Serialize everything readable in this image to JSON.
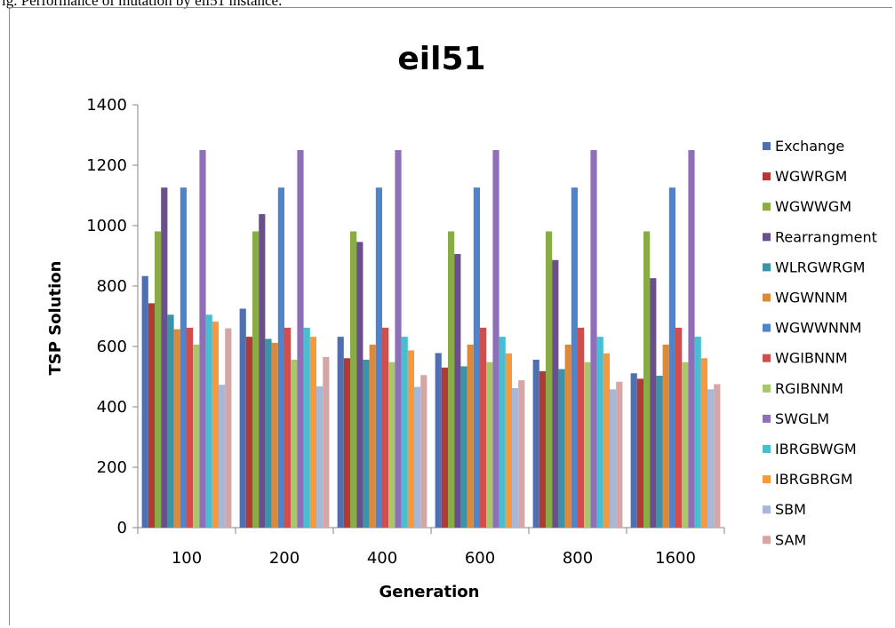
{
  "caption": "ig. Performance of mutation by eil51 instance.",
  "chart_data": {
    "type": "bar",
    "title": "eil51",
    "xlabel": "Generation",
    "ylabel": "TSP Solution",
    "ylim": [
      0,
      1400
    ],
    "yticks": [
      0,
      200,
      400,
      600,
      800,
      1000,
      1200,
      1400
    ],
    "grid": false,
    "legend_position": "right",
    "categories": [
      "100",
      "200",
      "400",
      "600",
      "800",
      "1600"
    ],
    "series": [
      {
        "name": "Exchange",
        "color": "#4f6fb0",
        "values": [
          833,
          725,
          632,
          578,
          556,
          511
        ]
      },
      {
        "name": "WGWRGM",
        "color": "#b23a36",
        "values": [
          743,
          632,
          561,
          530,
          518,
          493
        ]
      },
      {
        "name": "WGWWGM",
        "color": "#8aac47",
        "values": [
          981,
          981,
          981,
          981,
          981,
          981
        ]
      },
      {
        "name": "Rearrangment",
        "color": "#6b4f8c",
        "values": [
          1126,
          1038,
          946,
          906,
          886,
          826
        ]
      },
      {
        "name": "WLRGWRGM",
        "color": "#3c92a7",
        "values": [
          705,
          625,
          556,
          534,
          525,
          503
        ]
      },
      {
        "name": "WGWNNM",
        "color": "#db8a3c",
        "values": [
          657,
          612,
          606,
          606,
          606,
          606
        ]
      },
      {
        "name": "WGWWNNM",
        "color": "#4f83cc",
        "values": [
          1126,
          1126,
          1126,
          1126,
          1126,
          1126
        ]
      },
      {
        "name": "WGIBNNM",
        "color": "#d04f4c",
        "values": [
          662,
          662,
          662,
          662,
          662,
          662
        ]
      },
      {
        "name": "RGIBNNM",
        "color": "#a8c76a",
        "values": [
          606,
          556,
          548,
          548,
          548,
          548
        ]
      },
      {
        "name": "SWGLM",
        "color": "#8f70b8",
        "values": [
          1250,
          1250,
          1250,
          1250,
          1250,
          1250
        ]
      },
      {
        "name": "IBRGBWGM",
        "color": "#49bdd2",
        "values": [
          705,
          662,
          632,
          632,
          632,
          632
        ]
      },
      {
        "name": "IBRGBRGM",
        "color": "#f6993d",
        "values": [
          682,
          632,
          587,
          577,
          577,
          561
        ]
      },
      {
        "name": "SBM",
        "color": "#a7b7d6",
        "values": [
          473,
          468,
          466,
          462,
          458,
          458
        ]
      },
      {
        "name": "SAM",
        "color": "#d6a6a6",
        "values": [
          660,
          565,
          505,
          488,
          483,
          475
        ]
      }
    ]
  }
}
